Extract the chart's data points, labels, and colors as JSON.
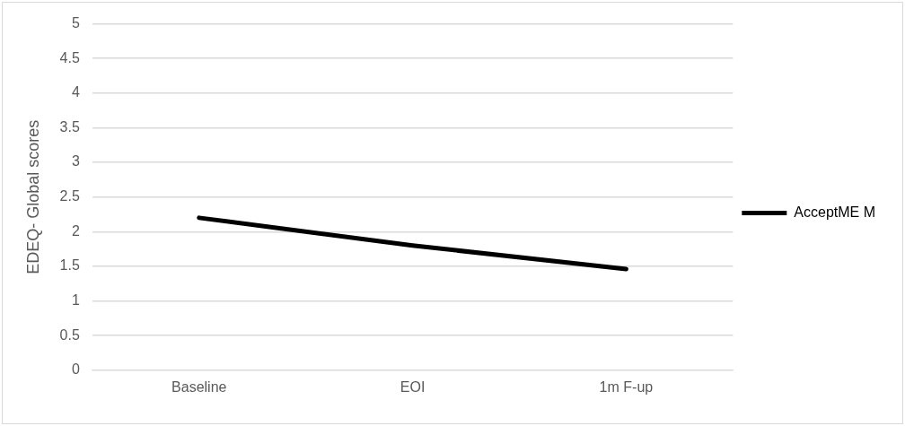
{
  "chart_data": {
    "type": "line",
    "ylabel": "EDEQ- Global scores",
    "categories": [
      "Baseline",
      "EOI",
      "1m F-up"
    ],
    "series": [
      {
        "name": "AcceptME M",
        "color": "#000000",
        "values": [
          2.2,
          1.8,
          1.46
        ]
      }
    ],
    "ylim": [
      0,
      5
    ],
    "yticks": [
      0,
      0.5,
      1,
      1.5,
      2,
      2.5,
      3,
      3.5,
      4,
      4.5,
      5
    ],
    "grid": "y",
    "legend": "right",
    "marker": "none",
    "line_style": "solid"
  }
}
